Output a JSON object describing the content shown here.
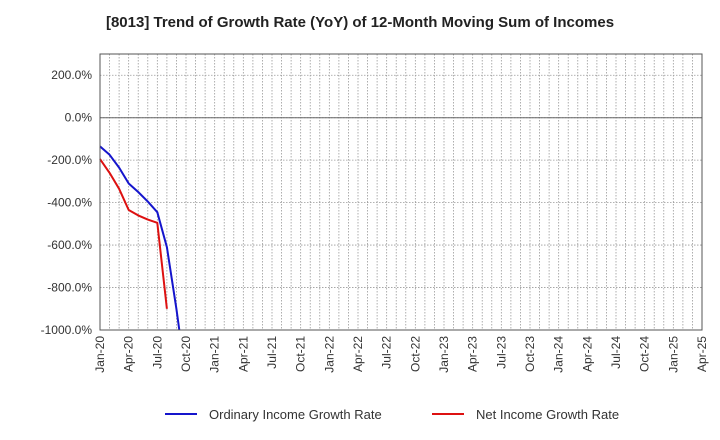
{
  "chart_data": {
    "type": "line",
    "title": "[8013]  Trend of Growth Rate (YoY) of 12-Month Moving Sum of Incomes",
    "xlabel": "",
    "ylabel": "",
    "x_ticks": [
      "Jan-20",
      "Apr-20",
      "Jul-20",
      "Oct-20",
      "Jan-21",
      "Apr-21",
      "Jul-21",
      "Oct-21",
      "Jan-22",
      "Apr-22",
      "Jul-22",
      "Oct-22",
      "Jan-23",
      "Apr-23",
      "Jul-23",
      "Oct-23",
      "Jan-24",
      "Apr-24",
      "Jul-24",
      "Oct-24",
      "Jan-25",
      "Apr-25"
    ],
    "y_ticks": [
      "200.0%",
      "0.0%",
      "-200.0%",
      "-400.0%",
      "-600.0%",
      "-800.0%",
      "-1000.0%"
    ],
    "y_tick_values": [
      200,
      0,
      -200,
      -400,
      -600,
      -800,
      -1000
    ],
    "ylim": [
      -1000,
      300
    ],
    "xlim": [
      "2020-01",
      "2025-04"
    ],
    "grid": true,
    "legend_position": "bottom",
    "series": [
      {
        "name": "Ordinary Income Growth Rate",
        "color": "#1515cc",
        "points": [
          {
            "x": "2020-01",
            "y": -135
          },
          {
            "x": "2020-02",
            "y": -175
          },
          {
            "x": "2020-03",
            "y": -235
          },
          {
            "x": "2020-04",
            "y": -310
          },
          {
            "x": "2020-05",
            "y": -350
          },
          {
            "x": "2020-06",
            "y": -395
          },
          {
            "x": "2020-07",
            "y": -445
          },
          {
            "x": "2020-08",
            "y": -610
          },
          {
            "x": "2020-09",
            "y": -900
          },
          {
            "x": "2020-09-10",
            "y": -1000
          }
        ]
      },
      {
        "name": "Net Income Growth Rate",
        "color": "#dd1111",
        "points": [
          {
            "x": "2020-01",
            "y": -195
          },
          {
            "x": "2020-02",
            "y": -260
          },
          {
            "x": "2020-03",
            "y": -335
          },
          {
            "x": "2020-04",
            "y": -435
          },
          {
            "x": "2020-05",
            "y": -460
          },
          {
            "x": "2020-06",
            "y": -480
          },
          {
            "x": "2020-07",
            "y": -495
          },
          {
            "x": "2020-08",
            "y": -900
          }
        ]
      }
    ]
  }
}
